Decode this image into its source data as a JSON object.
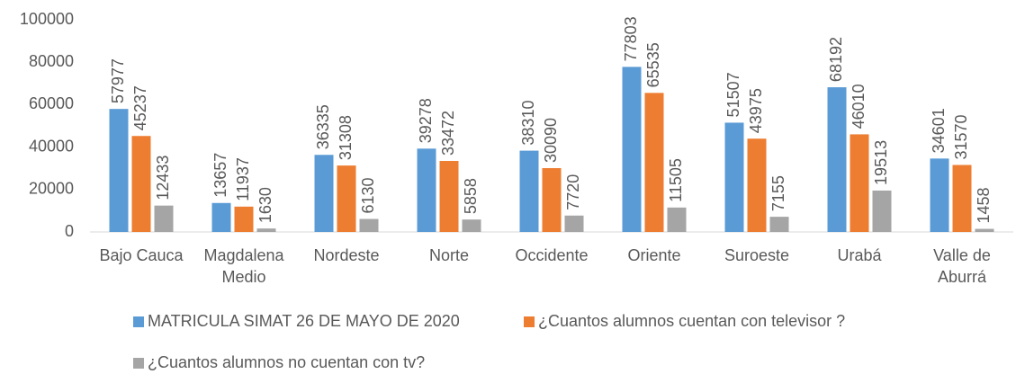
{
  "chart_data": {
    "type": "bar",
    "categories": [
      "Bajo Cauca",
      "Magdalena Medio",
      "Nordeste",
      "Norte",
      "Occidente",
      "Oriente",
      "Suroeste",
      "Urabá",
      "Valle de Aburrá"
    ],
    "series": [
      {
        "name": "MATRICULA SIMAT 26 DE MAYO DE 2020",
        "color": "#5b9bd5",
        "values": [
          57977,
          13657,
          36335,
          39278,
          38310,
          77803,
          51507,
          68192,
          34601
        ]
      },
      {
        "name": "¿Cuantos alumnos cuentan con televisor ?",
        "color": "#ed7d31",
        "values": [
          45237,
          11937,
          31308,
          33472,
          30090,
          65535,
          43975,
          46010,
          31570
        ]
      },
      {
        "name": "¿Cuantos alumnos no cuentan con tv?",
        "color": "#a5a5a5",
        "values": [
          12433,
          1630,
          6130,
          5858,
          7720,
          11505,
          7155,
          19513,
          1458
        ]
      }
    ],
    "ylim": [
      0,
      100000
    ],
    "yticks": [
      0,
      20000,
      40000,
      60000,
      80000,
      100000
    ],
    "grid": false
  }
}
